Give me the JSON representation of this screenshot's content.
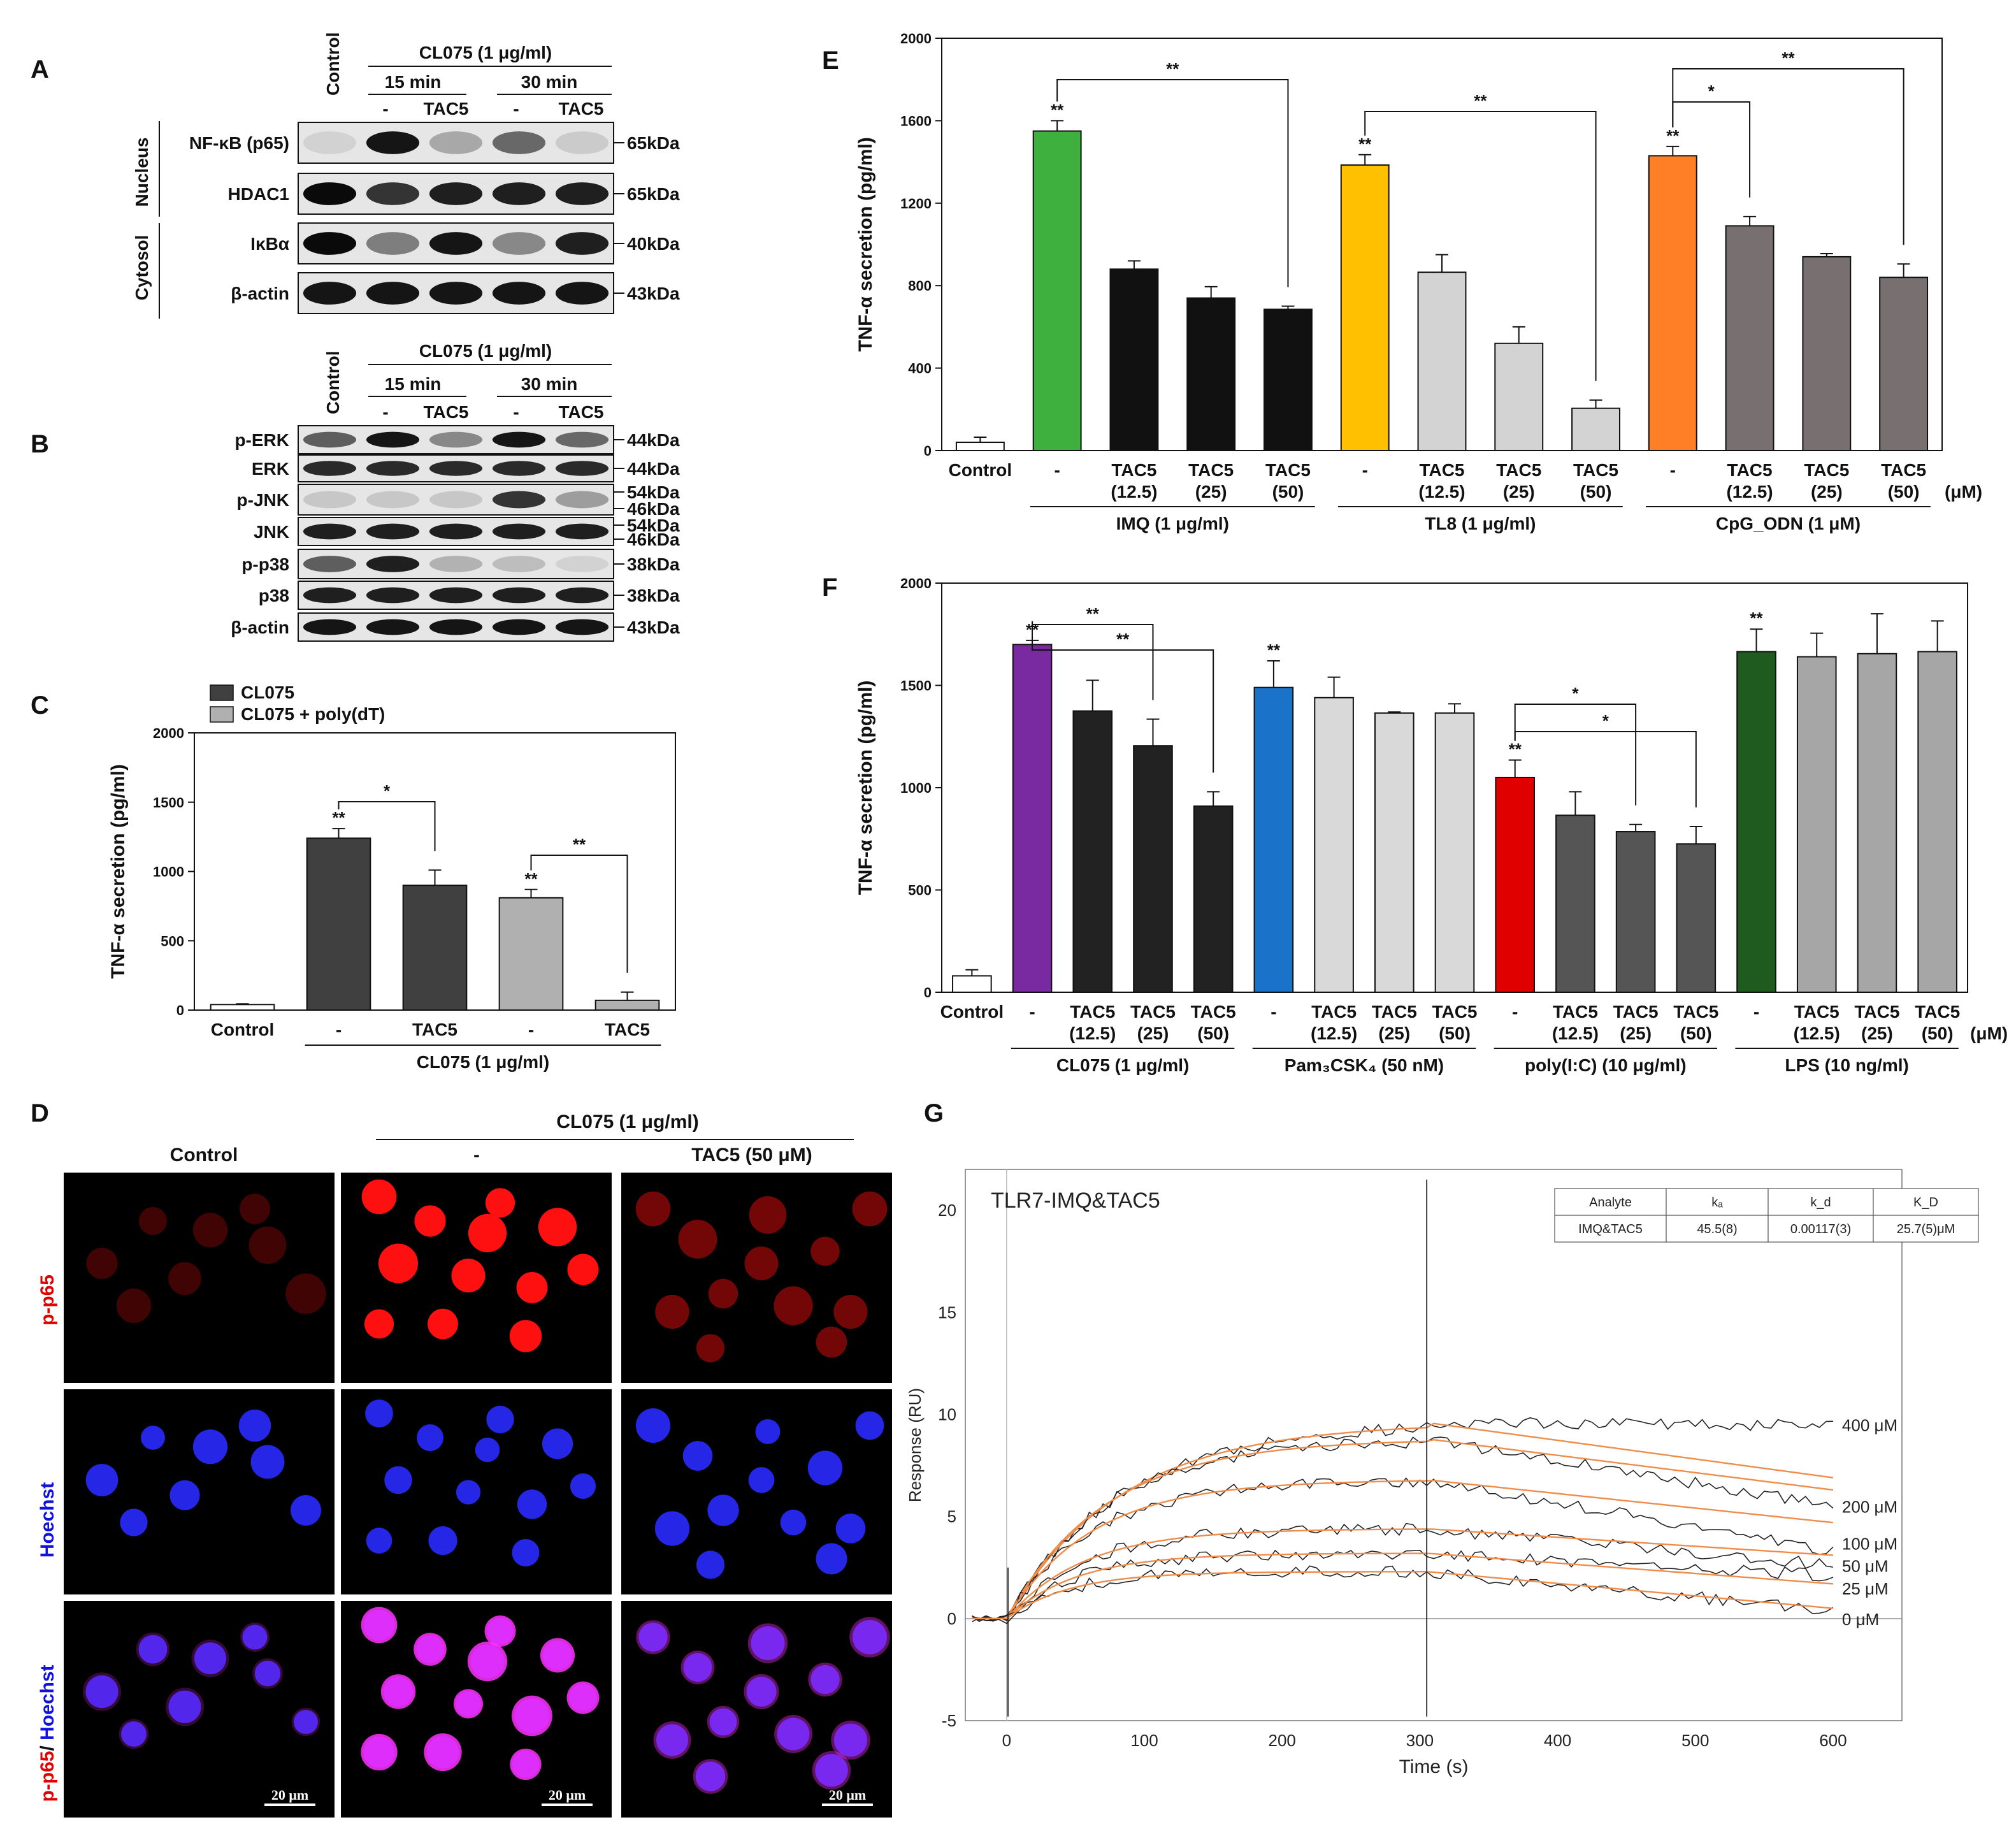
{
  "panels": {
    "A": {
      "letter": "A",
      "treatment_header": "CL075 (1 μg/ml)",
      "control_label": "Control",
      "time_headers": [
        "15 min",
        "30 min"
      ],
      "lane_labels": [
        "-",
        "TAC5",
        "-",
        "TAC5"
      ],
      "compartments": [
        "Nucleus",
        "Cytosol"
      ],
      "rows": [
        {
          "protein": "NF-κB (p65)",
          "size": "65kDa"
        },
        {
          "protein": "HDAC1",
          "size": "65kDa"
        },
        {
          "protein": "IκBα",
          "size": "40kDa"
        },
        {
          "protein": "β-actin",
          "size": "43kDa"
        }
      ]
    },
    "B": {
      "letter": "B",
      "treatment_header": "CL075 (1 μg/ml)",
      "control_label": "Control",
      "time_headers": [
        "15 min",
        "30 min"
      ],
      "lane_labels": [
        "-",
        "TAC5",
        "-",
        "TAC5"
      ],
      "rows": [
        {
          "protein": "p-ERK",
          "sizes": [
            "44kDa"
          ]
        },
        {
          "protein": "ERK",
          "sizes": [
            "44kDa"
          ]
        },
        {
          "protein": "p-JNK",
          "sizes": [
            "54kDa",
            "46kDa"
          ]
        },
        {
          "protein": "JNK",
          "sizes": [
            "54kDa",
            "46kDa"
          ]
        },
        {
          "protein": "p-p38",
          "sizes": [
            "38kDa"
          ]
        },
        {
          "protein": "p38",
          "sizes": [
            "38kDa"
          ]
        },
        {
          "protein": "β-actin",
          "sizes": [
            "43kDa"
          ]
        }
      ]
    },
    "C": {
      "letter": "C"
    },
    "D": {
      "letter": "D",
      "treatment_header": "CL075 (1 μg/ml)",
      "columns": [
        "Control",
        "-",
        "TAC5 (50 μM)"
      ],
      "row_labels": [
        "p-p65",
        "Hoechst",
        "p-p65",
        "/ ",
        "Hoechst"
      ],
      "scale_bar": "20 μm"
    },
    "E": {
      "letter": "E"
    },
    "F": {
      "letter": "F"
    },
    "G": {
      "letter": "G"
    }
  },
  "chart_data": [
    {
      "id": "C",
      "type": "bar",
      "ylabel": "TNF-α secretion (pg/ml)",
      "ylim": [
        0,
        2000
      ],
      "yticks": [
        "0",
        "500",
        "1000",
        "1500",
        "2000"
      ],
      "legend": [
        {
          "name": "CL075",
          "color": "#404040"
        },
        {
          "name": "CL075 + poly(dT)",
          "color": "#b0b0b0"
        }
      ],
      "categories": [
        "Control",
        "-",
        "TAC5",
        "-",
        "TAC5"
      ],
      "values": [
        40,
        1240,
        900,
        810,
        70
      ],
      "errors": [
        5,
        70,
        110,
        60,
        60
      ],
      "colors": [
        "#ffffff",
        "#404040",
        "#404040",
        "#b0b0b0",
        "#b0b0b0"
      ],
      "stars_above": [
        "",
        "**",
        "",
        "**",
        ""
      ],
      "brackets": [
        {
          "from": 1,
          "to": 2,
          "label": "*"
        },
        {
          "from": 3,
          "to": 4,
          "label": "**"
        }
      ],
      "group_label": "CL075 (1 μg/ml)"
    },
    {
      "id": "E",
      "type": "bar",
      "ylabel": "TNF-α secretion (pg/ml)",
      "ylim": [
        0,
        2000
      ],
      "yticks": [
        "0",
        "400",
        "800",
        "1200",
        "1600",
        "2000"
      ],
      "categories": [
        "Control",
        "-",
        "TAC5\n(12.5)",
        "TAC5\n(25)",
        "TAC5\n(50)",
        "-",
        "TAC5\n(12.5)",
        "TAC5\n(25)",
        "TAC5\n(50)",
        "-",
        "TAC5\n(12.5)",
        "TAC5\n(25)",
        "TAC5\n(50)"
      ],
      "values": [
        40,
        1550,
        880,
        740,
        685,
        1385,
        865,
        520,
        205,
        1430,
        1090,
        940,
        840
      ],
      "errors": [
        25,
        50,
        40,
        55,
        15,
        50,
        85,
        80,
        40,
        45,
        45,
        15,
        65
      ],
      "colors": [
        "#ffffff",
        "#3db03d",
        "#111111",
        "#111111",
        "#111111",
        "#ffc000",
        "#d3d3d3",
        "#d3d3d3",
        "#d3d3d3",
        "#ff7f27",
        "#787070",
        "#787070",
        "#787070"
      ],
      "stars_above": [
        "",
        "**",
        "",
        "",
        "",
        "**",
        "",
        "",
        "",
        "**",
        "",
        "",
        ""
      ],
      "brackets": [
        {
          "from": 1,
          "to": 4,
          "label": "**"
        },
        {
          "from": 5,
          "to": 8,
          "label": "**"
        },
        {
          "from": 9,
          "to": 10,
          "label": "*"
        },
        {
          "from": 9,
          "to": 12,
          "label": "**"
        }
      ],
      "groups": [
        {
          "label": "IMQ (1 μg/ml)",
          "from": 1,
          "to": 4
        },
        {
          "label": "TL8 (1 μg/ml)",
          "from": 5,
          "to": 8
        },
        {
          "label": "CpG_ODN (1 μM)",
          "from": 9,
          "to": 12
        }
      ],
      "unit_label": "(μM)"
    },
    {
      "id": "F",
      "type": "bar",
      "ylabel": "TNF-α secretion (pg/ml)",
      "ylim": [
        0,
        2000
      ],
      "yticks": [
        "0",
        "500",
        "1000",
        "1500",
        "2000"
      ],
      "categories": [
        "Control",
        "-",
        "TAC5\n(12.5)",
        "TAC5\n(25)",
        "TAC5\n(50)",
        "-",
        "TAC5\n(12.5)",
        "TAC5\n(25)",
        "TAC5\n(50)",
        "-",
        "TAC5\n(12.5)",
        "TAC5\n(25)",
        "TAC5\n(50)",
        "-",
        "TAC5\n(12.5)",
        "TAC5\n(25)",
        "TAC5\n(50)"
      ],
      "values": [
        80,
        1700,
        1375,
        1205,
        910,
        1490,
        1440,
        1365,
        1365,
        1050,
        865,
        785,
        725,
        1665,
        1640,
        1655,
        1665
      ],
      "errors": [
        30,
        20,
        150,
        130,
        70,
        130,
        100,
        5,
        45,
        85,
        115,
        35,
        85,
        110,
        115,
        195,
        150
      ],
      "colors": [
        "#ffffff",
        "#7a2aa0",
        "#222222",
        "#222222",
        "#222222",
        "#1a73c8",
        "#d9d9d9",
        "#d9d9d9",
        "#d9d9d9",
        "#e00000",
        "#555555",
        "#555555",
        "#555555",
        "#1f5a1f",
        "#a6a6a6",
        "#a6a6a6",
        "#a6a6a6"
      ],
      "stars_above": [
        "",
        "**",
        "",
        "",
        "",
        "**",
        "",
        "",
        "",
        "**",
        "",
        "",
        "",
        "**",
        "",
        "",
        ""
      ],
      "brackets": [
        {
          "from": 1,
          "to": 3,
          "label": "**"
        },
        {
          "from": 1,
          "to": 4,
          "label": "**"
        },
        {
          "from": 9,
          "to": 11,
          "label": "*"
        },
        {
          "from": 9,
          "to": 12,
          "label": "*"
        }
      ],
      "groups": [
        {
          "label": "CL075 (1 μg/ml)",
          "from": 1,
          "to": 4
        },
        {
          "label": "Pam₃CSK₄ (50 nM)",
          "from": 5,
          "to": 8
        },
        {
          "label": "poly(I:C)  (10 μg/ml)",
          "from": 9,
          "to": 12
        },
        {
          "label": "LPS (10 ng/ml)",
          "from": 13,
          "to": 16
        }
      ],
      "unit_label": "(μM)"
    },
    {
      "id": "G",
      "type": "line",
      "title": "TLR7-IMQ&TAC5",
      "xlabel": "Time (s)",
      "ylabel": "Response (RU)",
      "xlim": [
        -30,
        650
      ],
      "ylim": [
        -5,
        22
      ],
      "xticks": [
        "0",
        "100",
        "200",
        "300",
        "400",
        "500",
        "600"
      ],
      "yticks": [
        "-5",
        "0",
        "5",
        "10",
        "15",
        "20"
      ],
      "table": {
        "headers": [
          "Analyte",
          "kₐ",
          "k_d",
          "K_D"
        ],
        "row": [
          "IMQ&TAC5",
          "45.5(8)",
          "0.00117(3)",
          "25.7(5)μM"
        ]
      },
      "series": [
        {
          "name": "400 μM",
          "plateau": 9.6,
          "end": 9.5,
          "fit_end": 6.9
        },
        {
          "name": "200 μM",
          "plateau": 8.8,
          "end": 5.5,
          "fit_end": 6.3
        },
        {
          "name": "100 μM",
          "plateau": 6.8,
          "end": 3.3,
          "fit_end": 4.7
        },
        {
          "name": "50 μM",
          "plateau": 4.4,
          "end": 2.6,
          "fit_end": 3.1
        },
        {
          "name": "25 μM",
          "plateau": 3.2,
          "end": 2.1,
          "fit_end": 1.7
        },
        {
          "name": "0 μM",
          "plateau": 2.3,
          "end": 0.4,
          "fit_end": 0.5
        }
      ]
    }
  ]
}
